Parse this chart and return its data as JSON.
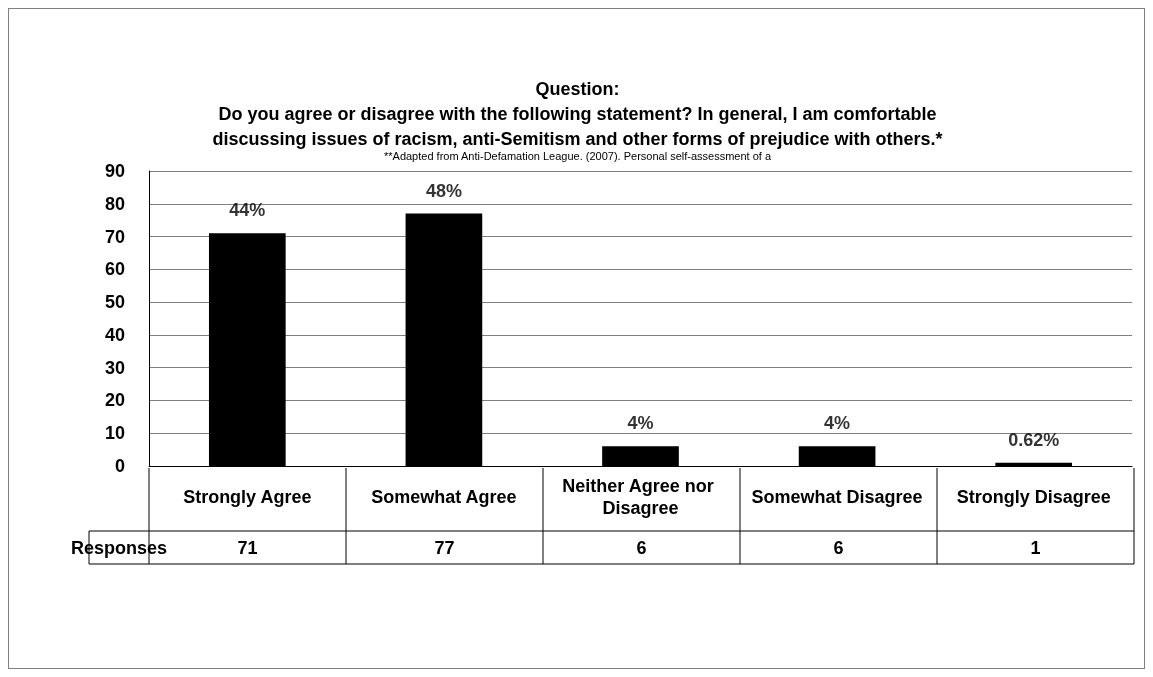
{
  "chart_data": {
    "type": "bar",
    "title": "Question:\nDo you agree or disagree with the following statement? In general, I am comfortable\ndiscussing issues of racism, anti-Semitism and other forms of prejudice with others.*",
    "subtitle": "**Adapted from Anti-Defamation League. (2007). Personal self-assessment of a",
    "categories": [
      "Strongly Agree",
      "Somewhat Agree",
      "Neither Agree nor Disagree",
      "Somewhat Disagree",
      "Strongly Disagree"
    ],
    "series": [
      {
        "name": "Responses",
        "color": "#000000",
        "values": [
          71,
          77,
          6,
          6,
          1
        ]
      }
    ],
    "annotations": [
      {
        "text": "44%",
        "x": "Strongly Agree",
        "y": 71
      },
      {
        "text": "48%",
        "x": "Somewhat Agree",
        "y": 77
      },
      {
        "text": "4%",
        "x": "Neither Agree nor Disagree",
        "y": 6
      },
      {
        "text": "4%",
        "x": "Somewhat Disagree",
        "y": 6
      },
      {
        "text": "0.62%",
        "x": "Strongly Disagree",
        "y": 1
      }
    ],
    "data_labels": true,
    "ylim": [
      0,
      90
    ],
    "yticks": [
      0,
      10,
      20,
      30,
      40,
      50,
      60,
      70,
      80,
      90
    ],
    "grid": "y",
    "legend": false
  }
}
